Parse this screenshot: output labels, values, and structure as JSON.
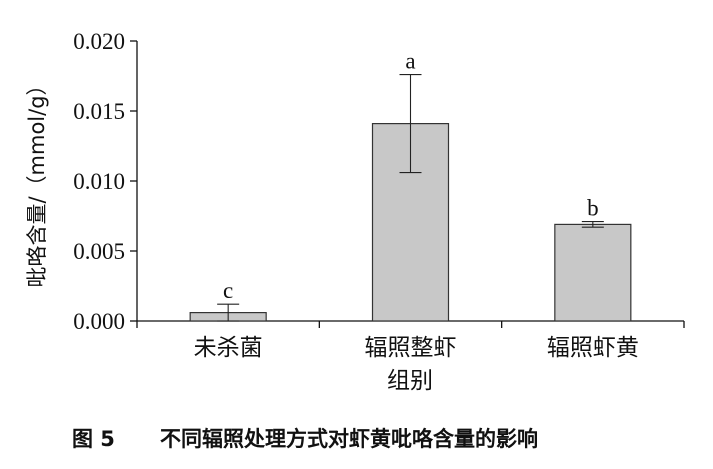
{
  "figure": {
    "caption_num": "图 5",
    "caption_text": "不同辐照处理方式对虾黄吡咯含量的影响"
  },
  "chart_data": {
    "type": "bar",
    "categories": [
      "未杀菌",
      "辐照整虾",
      "辐照虾黄"
    ],
    "values": [
      0.0006,
      0.0141,
      0.0069
    ],
    "errors": [
      0.0006,
      0.0035,
      0.0002
    ],
    "significance": [
      "c",
      "a",
      "b"
    ],
    "xlabel": "组别",
    "ylabel": "吡咯含量/（mmol/g）",
    "ylim": [
      0,
      0.02
    ],
    "yticks": [
      "0.000",
      "0.005",
      "0.010",
      "0.015",
      "0.020"
    ],
    "ytick_values": [
      0,
      0.005,
      0.01,
      0.015,
      0.02
    ],
    "grid": false,
    "colors": {
      "bar_fill": "#c8c8c8",
      "bar_stroke": "#333333",
      "axis": "#111111"
    }
  }
}
